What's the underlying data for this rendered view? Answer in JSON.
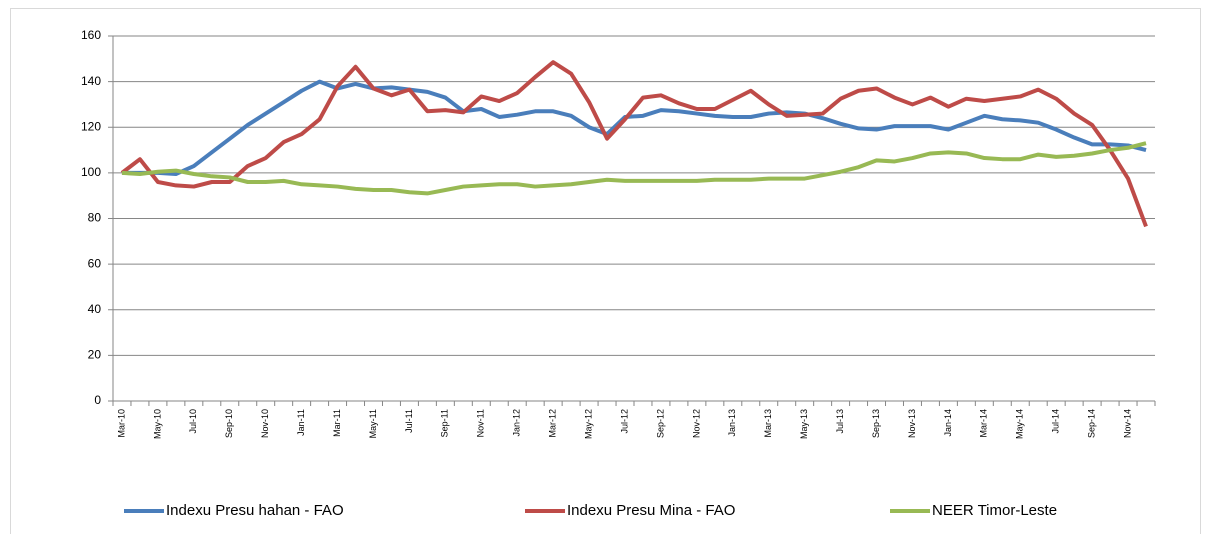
{
  "chart_data": {
    "type": "line",
    "categories": [
      "Mar-10",
      null,
      "May-10",
      null,
      "Jul-10",
      null,
      "Sep-10",
      null,
      "Nov-10",
      null,
      "Jan-11",
      null,
      "Mar-11",
      null,
      "May-11",
      null,
      "Jul-11",
      null,
      "Sep-11",
      null,
      "Nov-11",
      null,
      "Jan-12",
      null,
      "Mar-12",
      null,
      "May-12",
      null,
      "Jul-12",
      null,
      "Sep-12",
      null,
      "Nov-12",
      null,
      "Jan-13",
      null,
      "Mar-13",
      null,
      "May-13",
      null,
      "Jul-13",
      null,
      "Sep-13",
      null,
      "Nov-13",
      null,
      "Jan-14",
      null,
      "Mar-14",
      null,
      "May-14",
      null,
      "Jul-14",
      null,
      "Sep-14",
      null,
      "Nov-14",
      null
    ],
    "series": [
      {
        "name": "Indexu Presu hahan - FAO",
        "color": "#4a7ebb",
        "values": [
          100,
          100,
          100,
          99.5,
          103,
          109,
          115,
          121,
          126,
          131,
          136,
          140,
          137,
          139,
          137,
          137.5,
          136.5,
          135.5,
          133,
          127,
          128,
          124.5,
          125.5,
          127,
          127,
          125,
          120,
          117,
          124.5,
          125,
          127.5,
          127,
          126,
          125,
          124.5,
          124.5,
          126,
          126.5,
          126,
          124,
          121.5,
          119.5,
          119,
          120.5,
          120.5,
          120.5,
          119,
          122,
          125,
          123.5,
          123,
          122,
          119,
          115.5,
          112.5,
          112.5,
          112,
          110
        ]
      },
      {
        "name": "Indexu Presu Mina - FAO",
        "color": "#be4b48",
        "values": [
          100,
          106,
          96,
          94.5,
          94,
          96,
          96,
          103,
          106.5,
          113.5,
          117,
          123.5,
          138,
          146.5,
          137,
          134,
          136.5,
          127,
          127.5,
          126.5,
          133.5,
          131.5,
          135,
          142,
          148.5,
          143.5,
          131,
          115,
          123.5,
          133,
          134,
          130.5,
          128,
          128,
          132,
          136,
          130,
          125,
          125.5,
          126,
          132.5,
          136,
          137,
          133,
          130,
          133,
          129,
          132.5,
          131.5,
          132.5,
          133.5,
          136.5,
          132.5,
          126,
          121,
          110,
          97.5,
          76.5
        ]
      },
      {
        "name": "NEER Timor-Leste",
        "color": "#98b954",
        "values": [
          100,
          99.5,
          100.5,
          101,
          99.5,
          98.5,
          98,
          96,
          96,
          96.5,
          95,
          94.5,
          94,
          93,
          92.5,
          92.5,
          91.5,
          91,
          92.5,
          94,
          94.5,
          95,
          95,
          94,
          94.5,
          95,
          96,
          97,
          96.5,
          96.5,
          96.5,
          96.5,
          96.5,
          97,
          97,
          97,
          97.5,
          97.5,
          97.5,
          99,
          100.5,
          102.5,
          105.5,
          105,
          106.5,
          108.5,
          109,
          108.5,
          106.5,
          106,
          106,
          108,
          107,
          107.5,
          108.5,
          110,
          111,
          113
        ]
      }
    ],
    "ylim": [
      0,
      160
    ],
    "yticks": [
      0,
      20,
      40,
      60,
      80,
      100,
      120,
      140,
      160
    ],
    "grid": true,
    "legend": "bottom"
  }
}
